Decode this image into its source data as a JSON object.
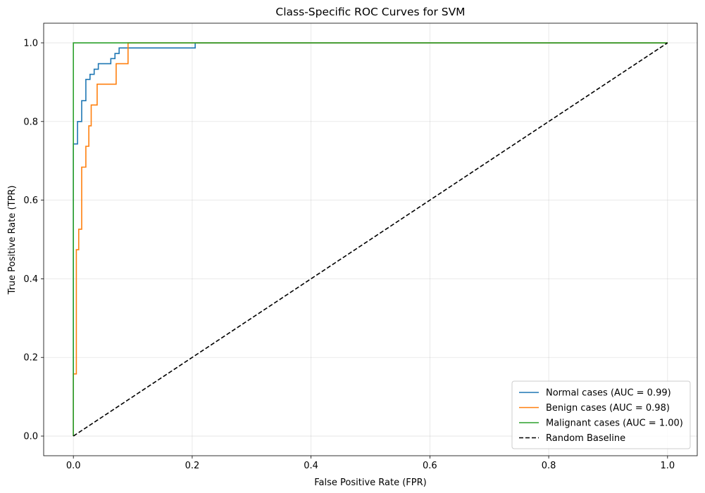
{
  "chart_data": {
    "type": "line",
    "title": "Class-Specific ROC Curves for SVM",
    "xlabel": "False Positive Rate (FPR)",
    "ylabel": "True Positive Rate (TPR)",
    "xlim": [
      -0.05,
      1.05
    ],
    "ylim": [
      -0.05,
      1.05
    ],
    "xticks": [
      0.0,
      0.2,
      0.4,
      0.6,
      0.8,
      1.0
    ],
    "yticks": [
      0.0,
      0.2,
      0.4,
      0.6,
      0.8,
      1.0
    ],
    "xtick_labels": [
      "0.0",
      "0.2",
      "0.4",
      "0.6",
      "0.8",
      "1.0"
    ],
    "ytick_labels": [
      "0.0",
      "0.2",
      "0.4",
      "0.6",
      "0.8",
      "1.0"
    ],
    "grid": true,
    "legend_position": "lower-right",
    "series": [
      {
        "name": "Normal cases (AUC = 0.99)",
        "color": "#1f77b4",
        "dash": "solid",
        "x": [
          0.0,
          0.0,
          0.0,
          0.007,
          0.007,
          0.014,
          0.014,
          0.021,
          0.021,
          0.028,
          0.028,
          0.035,
          0.035,
          0.042,
          0.042,
          0.063,
          0.063,
          0.07,
          0.07,
          0.077,
          0.077,
          0.205,
          0.205,
          1.0
        ],
        "y": [
          0.0,
          0.05,
          0.743,
          0.743,
          0.8,
          0.8,
          0.853,
          0.853,
          0.907,
          0.907,
          0.92,
          0.92,
          0.933,
          0.933,
          0.947,
          0.947,
          0.96,
          0.96,
          0.973,
          0.973,
          0.987,
          0.987,
          1.0,
          1.0
        ]
      },
      {
        "name": "Benign cases (AUC = 0.98)",
        "color": "#ff7f0e",
        "dash": "solid",
        "x": [
          0.0,
          0.0,
          0.0,
          0.005,
          0.005,
          0.009,
          0.009,
          0.014,
          0.014,
          0.021,
          0.021,
          0.026,
          0.026,
          0.03,
          0.03,
          0.04,
          0.04,
          0.072,
          0.072,
          0.092,
          0.092,
          1.0
        ],
        "y": [
          0.0,
          0.05,
          0.158,
          0.158,
          0.474,
          0.474,
          0.526,
          0.526,
          0.684,
          0.684,
          0.737,
          0.737,
          0.789,
          0.789,
          0.842,
          0.842,
          0.895,
          0.895,
          0.947,
          0.947,
          1.0,
          1.0
        ]
      },
      {
        "name": "Malignant cases (AUC = 1.00)",
        "color": "#2ca02c",
        "dash": "solid",
        "x": [
          0.0,
          0.0,
          1.0
        ],
        "y": [
          0.0,
          1.0,
          1.0
        ]
      },
      {
        "name": "Random Baseline",
        "color": "#000000",
        "dash": "dashed",
        "x": [
          0.0,
          1.0
        ],
        "y": [
          0.0,
          1.0
        ]
      }
    ]
  }
}
